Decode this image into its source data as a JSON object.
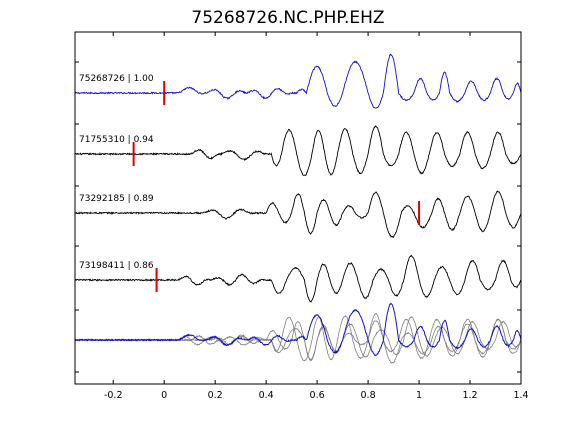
{
  "chart_data": {
    "type": "line",
    "title": "75268726.NC.PHP.EHZ",
    "xlabel": "",
    "ylabel": "",
    "xlim": [
      -0.35,
      1.4
    ],
    "xticks": [
      -0.2,
      0,
      0.2,
      0.4,
      0.6,
      0.8,
      1,
      1.2,
      1.4
    ],
    "xtick_labels": [
      "-0.2",
      "0",
      "0.2",
      "0.4",
      "0.6",
      "0.8",
      "1",
      "1.2",
      "1.4"
    ],
    "grid": false,
    "colors": {
      "reference": "#1010d0",
      "trace": "#000000",
      "overlay": "#808080",
      "pick": "#e00000",
      "axes": "#000000"
    },
    "series": [
      {
        "label": "75268726 | 1.00",
        "role": "reference",
        "pick_time": 0.0,
        "onset": 0.55,
        "emergent": [
          [
            0.05,
            0.16,
            5.7
          ],
          [
            0.16,
            0.32,
            8.5
          ],
          [
            0.32,
            0.5,
            9.8
          ]
        ],
        "cycles": [
          [
            0.52,
            0.558,
            0.3
          ],
          [
            0.558,
            0.64,
            2.2
          ],
          [
            0.64,
            0.7,
            -1.1
          ],
          [
            0.7,
            0.8,
            2.6
          ],
          [
            0.8,
            0.86,
            -1.3
          ],
          [
            0.86,
            0.92,
            3.2
          ],
          [
            0.92,
            0.98,
            -0.6
          ],
          [
            0.98,
            1.03,
            1.2
          ],
          [
            1.03,
            1.08,
            -0.6
          ],
          [
            1.08,
            1.12,
            1.7
          ],
          [
            1.12,
            1.18,
            -0.7
          ],
          [
            1.18,
            1.23,
            1.0
          ],
          [
            1.23,
            1.28,
            -0.6
          ],
          [
            1.28,
            1.33,
            1.2
          ],
          [
            1.33,
            1.37,
            -0.5
          ],
          [
            1.37,
            1.4,
            0.8
          ]
        ]
      },
      {
        "label": "71755310 | 0.94",
        "role": "trace",
        "pick_time": -0.12,
        "onset": 0.4,
        "emergent": [
          [
            0.1,
            0.22,
            8.5
          ],
          [
            0.22,
            0.4,
            8.0
          ]
        ],
        "cycles": [
          [
            0.42,
            0.46,
            -1.0
          ],
          [
            0.46,
            0.52,
            2.0
          ],
          [
            0.52,
            0.58,
            -1.8
          ],
          [
            0.58,
            0.63,
            2.0
          ],
          [
            0.63,
            0.68,
            -1.7
          ],
          [
            0.68,
            0.74,
            2.1
          ],
          [
            0.74,
            0.8,
            -1.6
          ],
          [
            0.8,
            0.86,
            2.3
          ],
          [
            0.86,
            0.92,
            -1.0
          ],
          [
            0.92,
            0.98,
            1.8
          ],
          [
            0.98,
            1.04,
            -1.6
          ],
          [
            1.04,
            1.1,
            1.8
          ],
          [
            1.1,
            1.16,
            -1.0
          ],
          [
            1.16,
            1.22,
            1.8
          ],
          [
            1.22,
            1.28,
            -1.2
          ],
          [
            1.28,
            1.34,
            1.8
          ],
          [
            1.34,
            1.4,
            -0.8
          ]
        ]
      },
      {
        "label": "73292185 | 0.89",
        "role": "trace",
        "pick_time": 1.0,
        "onset": 0.4,
        "emergent": [
          [
            0.15,
            0.35,
            8.0
          ]
        ],
        "cycles": [
          [
            0.4,
            0.45,
            0.8
          ],
          [
            0.45,
            0.5,
            -0.8
          ],
          [
            0.5,
            0.55,
            1.6
          ],
          [
            0.55,
            0.6,
            -1.7
          ],
          [
            0.6,
            0.65,
            1.1
          ],
          [
            0.65,
            0.7,
            -1.0
          ],
          [
            0.7,
            0.75,
            0.6
          ],
          [
            0.75,
            0.8,
            -0.4
          ],
          [
            0.8,
            0.86,
            1.7
          ],
          [
            0.86,
            0.93,
            -2.0
          ],
          [
            0.93,
            0.98,
            0.6
          ],
          [
            0.98,
            1.05,
            -1.2
          ],
          [
            1.05,
            1.1,
            1.2
          ],
          [
            1.1,
            1.16,
            -1.4
          ],
          [
            1.16,
            1.22,
            1.4
          ],
          [
            1.22,
            1.28,
            -1.5
          ],
          [
            1.28,
            1.34,
            1.8
          ],
          [
            1.34,
            1.4,
            -1.2
          ]
        ]
      },
      {
        "label": "73198411 | 0.86",
        "role": "trace",
        "pick_time": -0.03,
        "onset": 0.42,
        "emergent": [
          [
            0.05,
            0.18,
            9.0
          ],
          [
            0.18,
            0.4,
            10.0
          ]
        ],
        "cycles": [
          [
            0.42,
            0.48,
            -1.1
          ],
          [
            0.48,
            0.55,
            1.0
          ],
          [
            0.55,
            0.6,
            -1.8
          ],
          [
            0.6,
            0.65,
            1.3
          ],
          [
            0.65,
            0.7,
            -1.1
          ],
          [
            0.7,
            0.76,
            1.4
          ],
          [
            0.76,
            0.82,
            -1.5
          ],
          [
            0.82,
            0.88,
            0.9
          ],
          [
            0.88,
            0.94,
            -1.3
          ],
          [
            0.94,
            1.0,
            2.0
          ],
          [
            1.0,
            1.06,
            -1.4
          ],
          [
            1.06,
            1.12,
            1.1
          ],
          [
            1.12,
            1.18,
            -1.2
          ],
          [
            1.18,
            1.24,
            1.6
          ],
          [
            1.24,
            1.3,
            -0.8
          ],
          [
            1.3,
            1.36,
            1.6
          ],
          [
            1.36,
            1.4,
            -0.6
          ]
        ]
      }
    ],
    "stack": {
      "label": "",
      "shows": "all traces overlaid, reference on top"
    }
  }
}
